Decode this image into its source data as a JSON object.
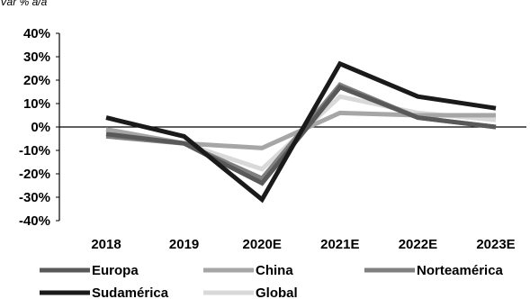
{
  "chart_data": {
    "type": "line",
    "partial_ylabel": "Var % a/a",
    "categories": [
      "2018",
      "2019",
      "2020E",
      "2021E",
      "2022E",
      "2023E"
    ],
    "ylim": [
      -40,
      40
    ],
    "yticks": [
      "40%",
      "30%",
      "20%",
      "10%",
      "0%",
      "-10%",
      "-20%",
      "-30%",
      "-40%"
    ],
    "grid": false,
    "legend_position": "bottom",
    "series": [
      {
        "name": "Europa",
        "color": "#595959",
        "values": [
          -3,
          -7,
          -24,
          17,
          4,
          0
        ]
      },
      {
        "name": "China",
        "color": "#a6a6a6",
        "values": [
          -1,
          -7,
          -9,
          6,
          5,
          5
        ]
      },
      {
        "name": "Norteamérica",
        "color": "#808080",
        "values": [
          -4,
          -7,
          -22,
          18,
          4,
          0
        ]
      },
      {
        "name": "Sudamérica",
        "color": "#1a1a1a",
        "values": [
          4,
          -4,
          -31,
          27,
          13,
          8
        ]
      },
      {
        "name": "Global",
        "color": "#d9d9d9",
        "values": [
          -2,
          -7,
          -18,
          13,
          6,
          3
        ]
      }
    ]
  }
}
